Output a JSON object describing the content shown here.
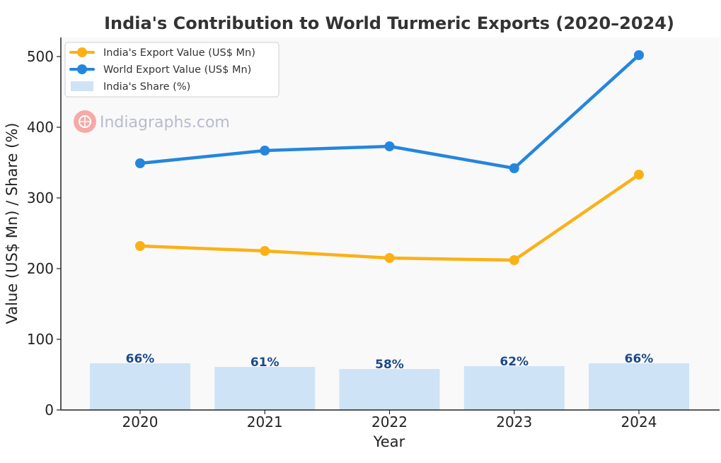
{
  "chart_data": {
    "type": "bar",
    "title": "India's Contribution to World Turmeric Exports (2020–2024)",
    "xlabel": "Year",
    "ylabel": "Value (US$ Mn) / Share (%)",
    "categories": [
      "2020",
      "2021",
      "2022",
      "2023",
      "2024"
    ],
    "ylim": [
      0,
      525
    ],
    "yticks": [
      0,
      100,
      200,
      300,
      400,
      500
    ],
    "ytick_labels": [
      "0",
      "100",
      "200",
      "300",
      "400",
      "500"
    ],
    "grid": false,
    "legend_position": "top-left",
    "bars": {
      "name": "India's Share (%)",
      "values": [
        66,
        61,
        58,
        62,
        66
      ],
      "labels": [
        "66%",
        "61%",
        "58%",
        "62%",
        "66%"
      ],
      "color": "#cfe3f6",
      "label_color": "#1a4a8a"
    },
    "series": [
      {
        "name": "India's Export Value (US$ Mn)",
        "values": [
          232,
          225,
          215,
          212,
          333
        ],
        "color": "#fbb116"
      },
      {
        "name": "World Export Value (US$ Mn)",
        "values": [
          349,
          367,
          373,
          342,
          502
        ],
        "color": "#2486de"
      }
    ]
  },
  "watermark": {
    "text": "Indiagraphs.com",
    "color": "#b9b9d2",
    "icon": "indiagraphs-logo-icon"
  },
  "colors": {
    "plot_background": "#f9f9f9",
    "axis": "#222222"
  }
}
